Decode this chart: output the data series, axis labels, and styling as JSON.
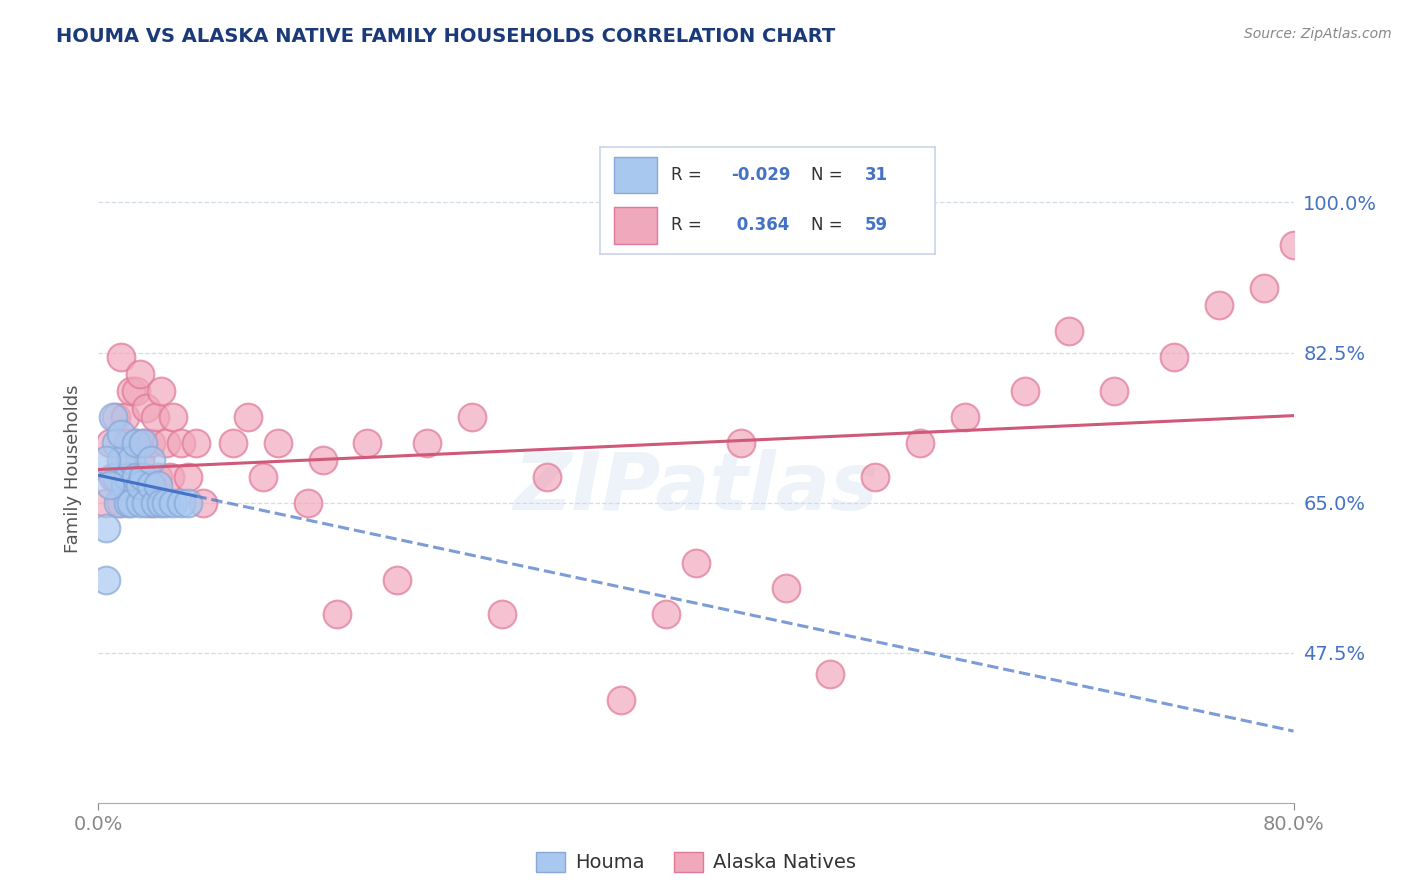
{
  "title": "HOUMA VS ALASKA NATIVE FAMILY HOUSEHOLDS CORRELATION CHART",
  "source_text": "Source: ZipAtlas.com",
  "ylabel": "Family Households",
  "xlim": [
    0.0,
    0.8
  ],
  "ylim": [
    0.3,
    1.08
  ],
  "xticks": [
    0.0,
    0.8
  ],
  "xticklabels": [
    "0.0%",
    "80.0%"
  ],
  "yticks": [
    0.475,
    0.65,
    0.825,
    1.0
  ],
  "yticklabels": [
    "47.5%",
    "65.0%",
    "82.5%",
    "100.0%"
  ],
  "houma_color": "#a8c8f0",
  "alaska_color": "#f0a8bc",
  "houma_edge_color": "#88a8d8",
  "alaska_edge_color": "#e07898",
  "houma_line_color": "#4472c4",
  "alaska_line_color": "#d05878",
  "houma_R": -0.029,
  "houma_N": 31,
  "alaska_R": 0.364,
  "alaska_N": 59,
  "legend_label_houma": "Houma",
  "legend_label_alaska": "Alaska Natives",
  "background_color": "#ffffff",
  "grid_color": "#c8d4e8",
  "title_color": "#1a3a7a",
  "axis_color": "#4472c4",
  "watermark_text": "ZIPatlas",
  "houma_scatter_x": [
    0.005,
    0.005,
    0.01,
    0.012,
    0.012,
    0.013,
    0.015,
    0.015,
    0.018,
    0.02,
    0.02,
    0.022,
    0.022,
    0.025,
    0.025,
    0.028,
    0.028,
    0.03,
    0.03,
    0.032,
    0.035,
    0.035,
    0.038,
    0.04,
    0.042,
    0.045,
    0.05,
    0.055,
    0.06,
    0.005,
    0.008
  ],
  "houma_scatter_y": [
    0.56,
    0.62,
    0.75,
    0.68,
    0.72,
    0.65,
    0.7,
    0.73,
    0.67,
    0.65,
    0.68,
    0.7,
    0.65,
    0.68,
    0.72,
    0.65,
    0.67,
    0.68,
    0.72,
    0.65,
    0.67,
    0.7,
    0.65,
    0.67,
    0.65,
    0.65,
    0.65,
    0.65,
    0.65,
    0.7,
    0.67
  ],
  "alaska_scatter_x": [
    0.005,
    0.008,
    0.01,
    0.012,
    0.015,
    0.015,
    0.018,
    0.018,
    0.02,
    0.022,
    0.022,
    0.025,
    0.025,
    0.028,
    0.028,
    0.03,
    0.03,
    0.032,
    0.035,
    0.035,
    0.038,
    0.04,
    0.042,
    0.045,
    0.048,
    0.05,
    0.055,
    0.06,
    0.065,
    0.07,
    0.09,
    0.1,
    0.11,
    0.12,
    0.14,
    0.15,
    0.16,
    0.18,
    0.2,
    0.22,
    0.25,
    0.27,
    0.3,
    0.35,
    0.38,
    0.4,
    0.43,
    0.46,
    0.49,
    0.52,
    0.55,
    0.58,
    0.62,
    0.65,
    0.68,
    0.72,
    0.75,
    0.78,
    0.8
  ],
  "alaska_scatter_y": [
    0.65,
    0.72,
    0.68,
    0.75,
    0.65,
    0.82,
    0.7,
    0.75,
    0.72,
    0.68,
    0.78,
    0.72,
    0.78,
    0.7,
    0.8,
    0.68,
    0.72,
    0.76,
    0.65,
    0.72,
    0.75,
    0.68,
    0.78,
    0.72,
    0.68,
    0.75,
    0.72,
    0.68,
    0.72,
    0.65,
    0.72,
    0.75,
    0.68,
    0.72,
    0.65,
    0.7,
    0.52,
    0.72,
    0.56,
    0.72,
    0.75,
    0.52,
    0.68,
    0.42,
    0.52,
    0.58,
    0.72,
    0.55,
    0.45,
    0.68,
    0.72,
    0.75,
    0.78,
    0.85,
    0.78,
    0.82,
    0.88,
    0.9,
    0.95
  ]
}
